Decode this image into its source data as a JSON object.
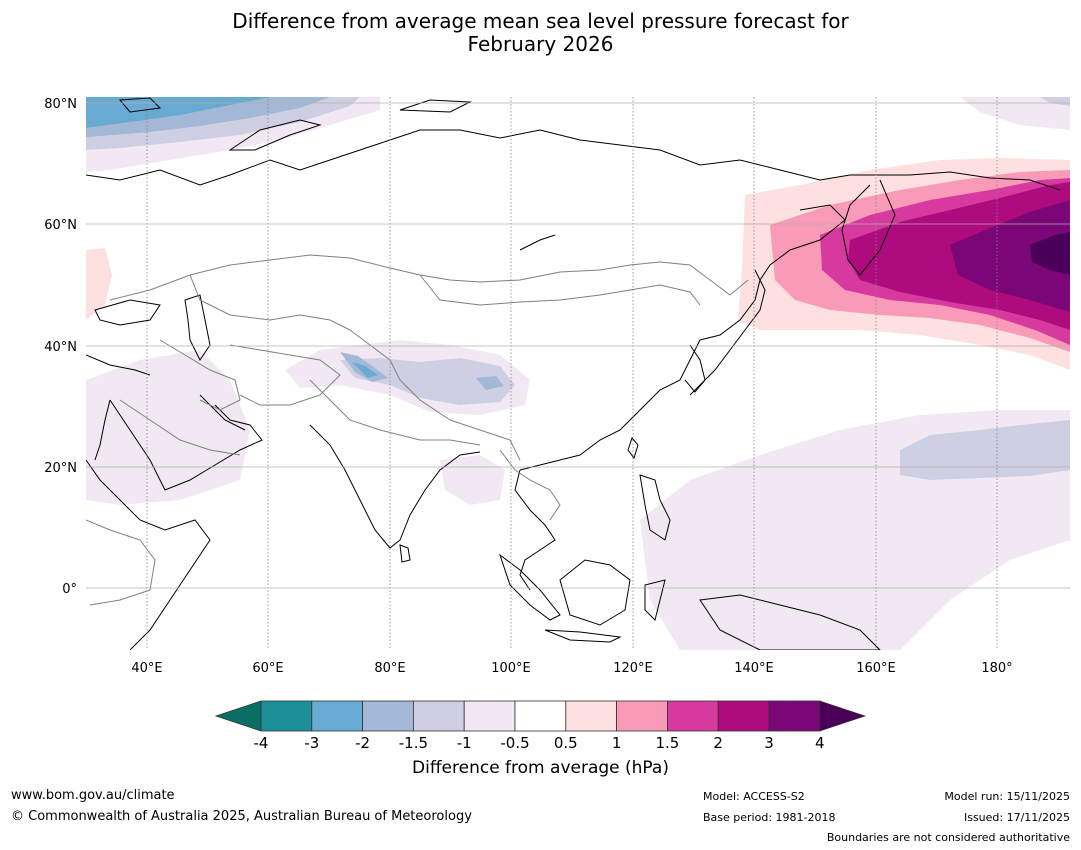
{
  "title": {
    "line1": "Difference from average mean sea level pressure forecast for",
    "line2": "February 2026"
  },
  "map": {
    "lon_range": [
      30,
      192
    ],
    "lat_range": [
      -10,
      81
    ],
    "lon_ticks": [
      "40°E",
      "60°E",
      "80°E",
      "100°E",
      "120°E",
      "140°E",
      "160°E",
      "180°"
    ],
    "lat_ticks": [
      "80°N",
      "60°N",
      "40°N",
      "20°N",
      "0°"
    ],
    "lon_tick_values": [
      40,
      60,
      80,
      100,
      120,
      140,
      160,
      180
    ],
    "lat_tick_values": [
      80,
      60,
      40,
      20,
      0
    ],
    "grid": true
  },
  "colorbar": {
    "title": "Difference from average (hPa)",
    "tick_labels": [
      "-4",
      "-3",
      "-2",
      "-1.5",
      "-1",
      "-0.5",
      "0.5",
      "1",
      "1.5",
      "2",
      "3",
      "4"
    ],
    "low_extend_color": "#0b6e64",
    "high_extend_color": "#4a0058",
    "colors": [
      "#1c8f98",
      "#68aad2",
      "#a3b8d6",
      "#cfcfe3",
      "#f1e8f3",
      "#ffffff",
      "#fde0df",
      "#f89ab8",
      "#d63a9e",
      "#ad0b7e",
      "#7a0677"
    ]
  },
  "footer": {
    "website": "www.bom.gov.au/climate",
    "copyright": "© Commonwealth of Australia 2025, Australian Bureau of Meteorology",
    "model": "Model: ACCESS-S2",
    "base_period": "Base period: 1981-2018",
    "model_run": "Model run: 15/11/2025",
    "issued": "Issued: 17/11/2025",
    "disclaimer": "Boundaries are not considered authoritative"
  }
}
